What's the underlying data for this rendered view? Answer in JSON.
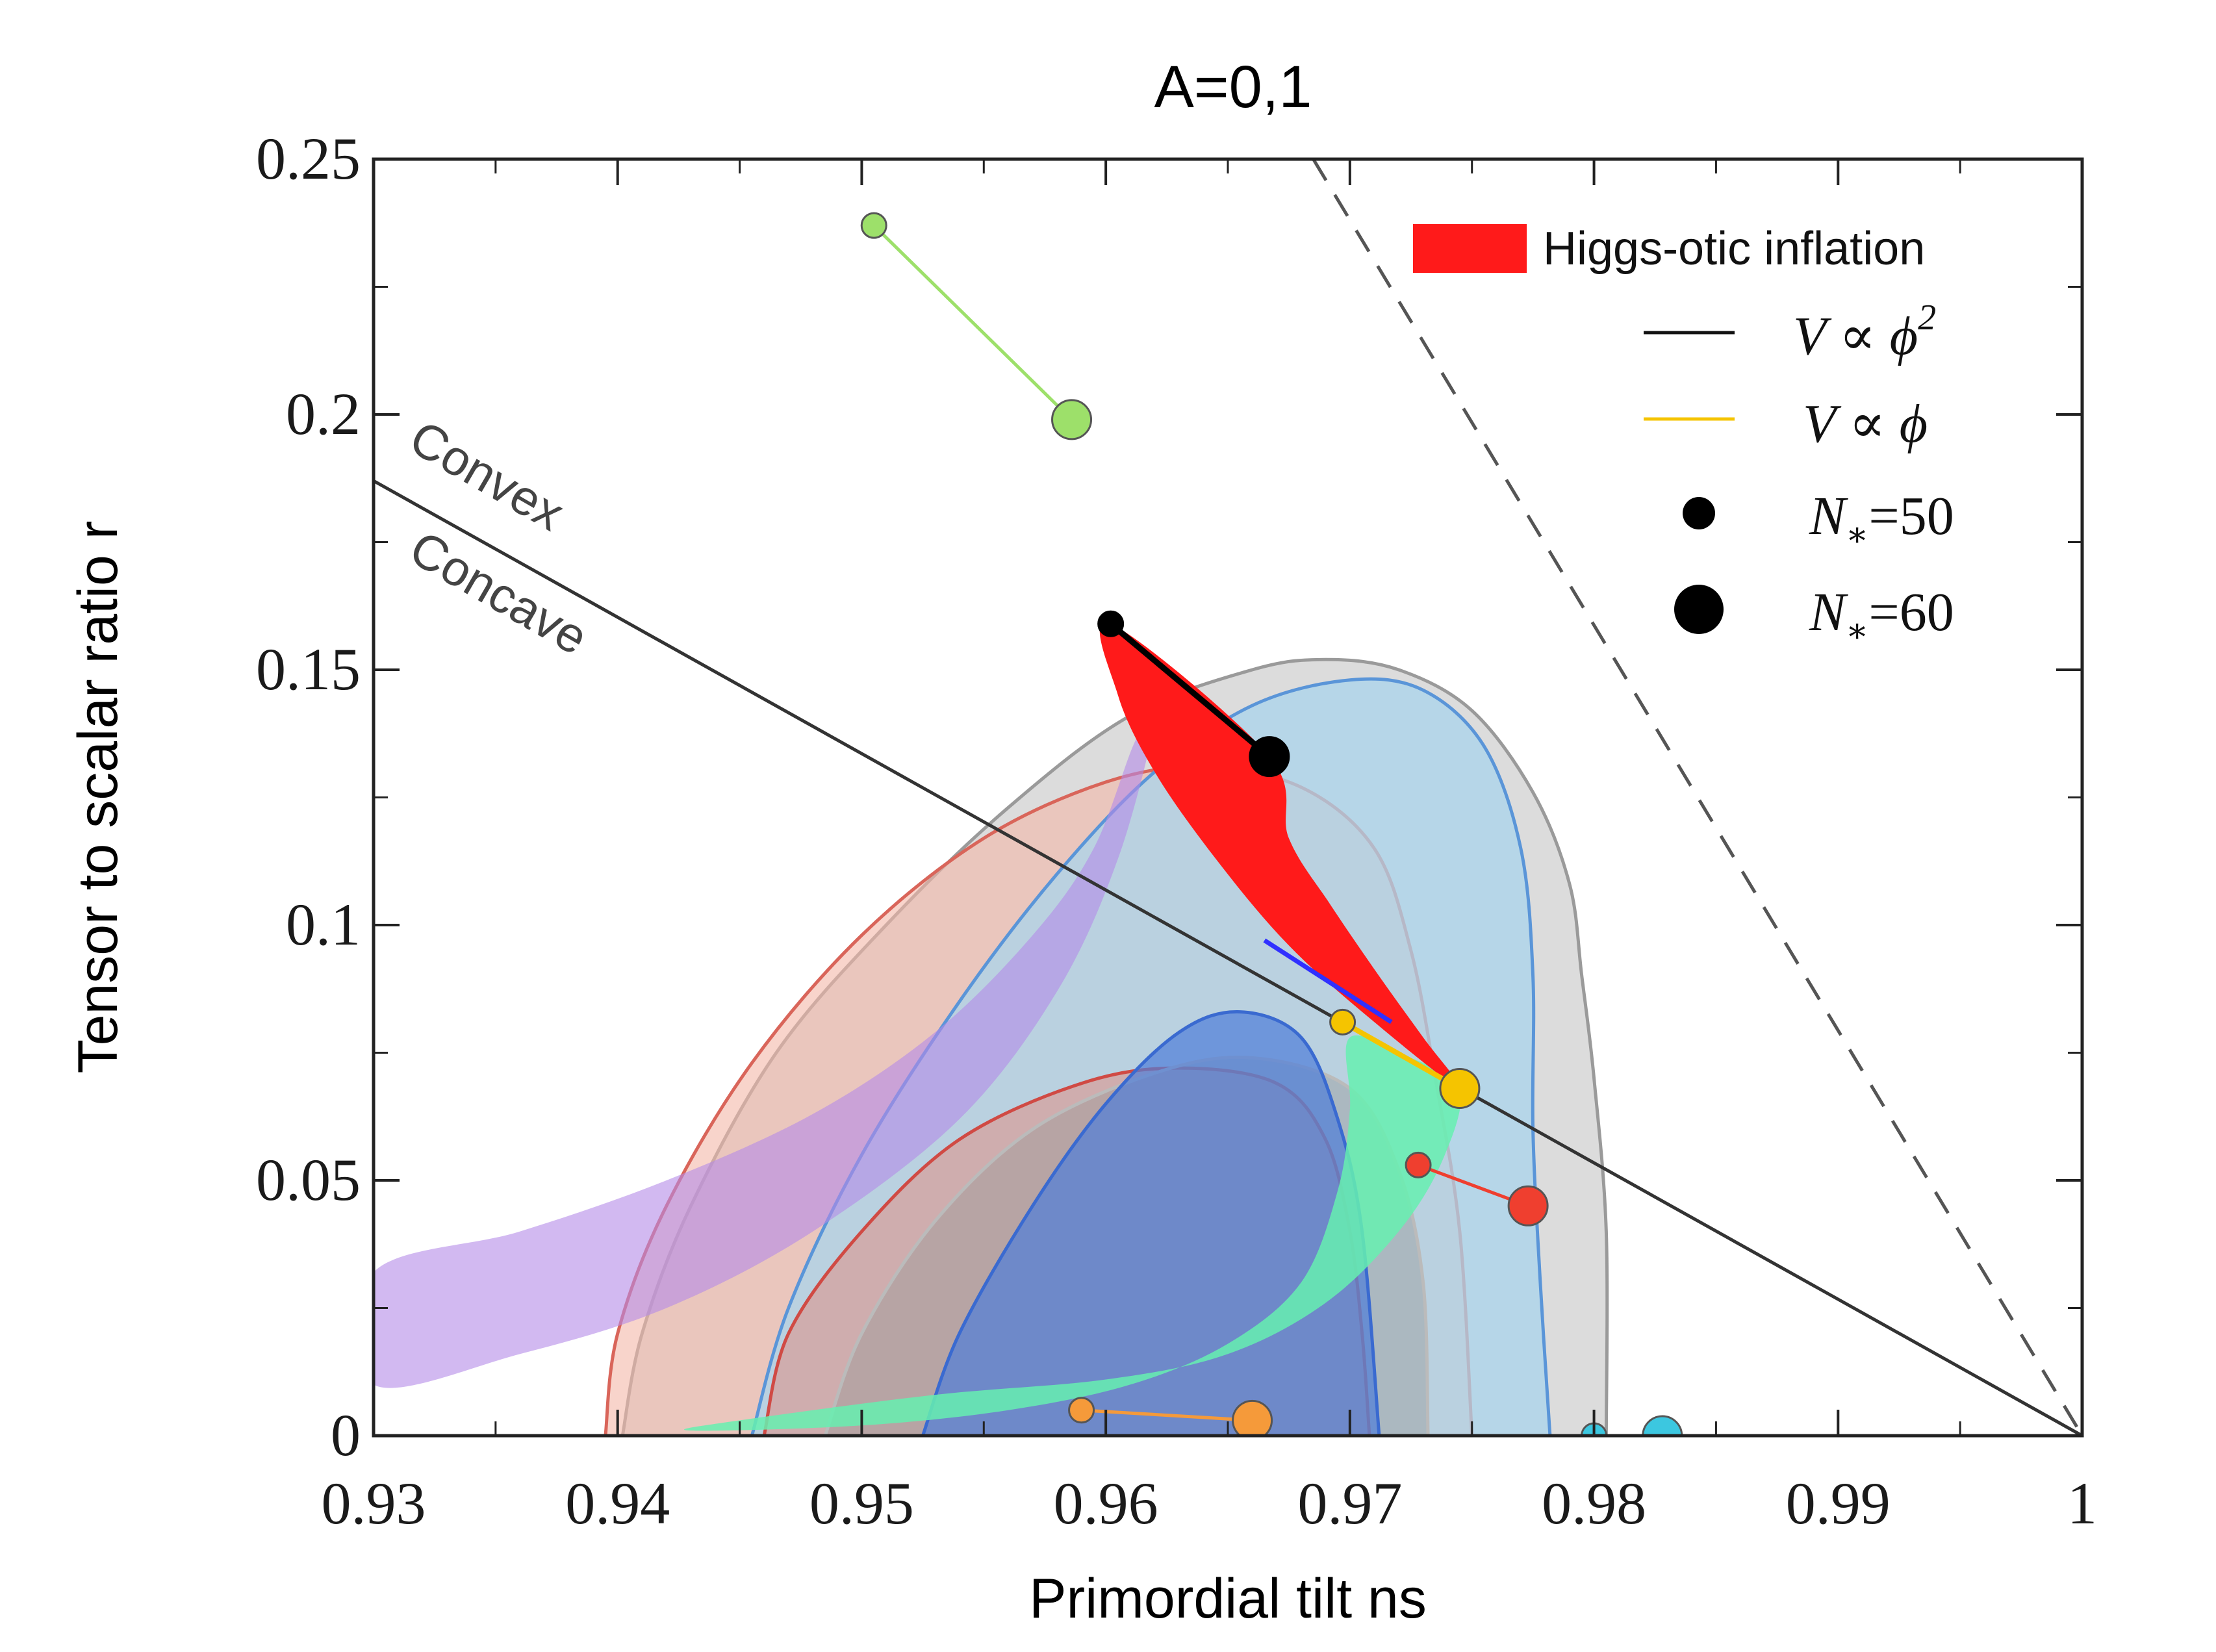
{
  "chart_data": {
    "type": "scatter",
    "title": "A=0,1",
    "xlabel": "Primordial tilt ns",
    "ylabel": "Tensor to scalar ratio r",
    "xlim": [
      0.93,
      1.0
    ],
    "ylim": [
      0,
      0.25
    ],
    "x_ticks": [
      0.93,
      0.94,
      0.95,
      0.96,
      0.97,
      0.98,
      0.99,
      1.0
    ],
    "x_tick_labels": [
      "0.93",
      "0.94",
      "0.95",
      "0.96",
      "0.97",
      "0.98",
      "0.99",
      "1"
    ],
    "y_ticks": [
      0,
      0.05,
      0.1,
      0.15,
      0.2,
      0.25
    ],
    "y_tick_labels": [
      "0",
      "0.05",
      "0.1",
      "0.15",
      "0.2",
      "0.25"
    ],
    "grid": false,
    "legend_position": "top-right",
    "legend": [
      {
        "label": "Higgs-otic inflation",
        "kind": "fill",
        "color": "#ff1a1a"
      },
      {
        "label_main": "V ∝ ϕ",
        "label_sup": "2",
        "kind": "line",
        "color": "#111111"
      },
      {
        "label_main": "V ∝ ϕ",
        "label_sup": "",
        "kind": "line",
        "color": "#f5c400"
      },
      {
        "label_main": "N",
        "label_sub": "∗",
        "label_rest": "=50",
        "kind": "small-dot",
        "color": "#000000"
      },
      {
        "label_main": "N",
        "label_sub": "∗",
        "label_rest": "=60",
        "kind": "big-dot",
        "color": "#000000"
      }
    ],
    "region_labels": [
      "Convex",
      "Concave"
    ],
    "reference_lines": [
      {
        "name": "convex-concave",
        "style": "solid",
        "color": "#333333",
        "points": [
          [
            0.93,
            0.187
          ],
          [
            1.0,
            0.0
          ]
        ]
      },
      {
        "name": "dashed-bound",
        "style": "dashed",
        "color": "#555555",
        "points": [
          [
            0.9685,
            0.25
          ],
          [
            1.0,
            0.0
          ]
        ]
      }
    ],
    "contours": [
      {
        "name": "grey-95",
        "fill": "#d6d6d6",
        "stroke": "#9a9a9a",
        "opacity": 0.85,
        "points": [
          [
            0.9402,
            0.0
          ],
          [
            0.941,
            0.02
          ],
          [
            0.943,
            0.045
          ],
          [
            0.9465,
            0.075
          ],
          [
            0.951,
            0.1
          ],
          [
            0.956,
            0.123
          ],
          [
            0.961,
            0.141
          ],
          [
            0.966,
            0.15
          ],
          [
            0.969,
            0.152
          ],
          [
            0.972,
            0.15
          ],
          [
            0.975,
            0.142
          ],
          [
            0.9775,
            0.126
          ],
          [
            0.979,
            0.108
          ],
          [
            0.9795,
            0.09
          ],
          [
            0.98,
            0.07
          ],
          [
            0.9805,
            0.04
          ],
          [
            0.9805,
            0.0
          ]
        ]
      },
      {
        "name": "red-95",
        "fill": "#f4b8a8",
        "stroke": "#d9655a",
        "opacity": 0.6,
        "points": [
          [
            0.9395,
            0.0
          ],
          [
            0.94,
            0.02
          ],
          [
            0.942,
            0.045
          ],
          [
            0.9455,
            0.073
          ],
          [
            0.95,
            0.098
          ],
          [
            0.955,
            0.117
          ],
          [
            0.96,
            0.128
          ],
          [
            0.964,
            0.131
          ],
          [
            0.968,
            0.127
          ],
          [
            0.971,
            0.115
          ],
          [
            0.9725,
            0.095
          ],
          [
            0.9735,
            0.07
          ],
          [
            0.9745,
            0.04
          ],
          [
            0.975,
            0.0
          ]
        ]
      },
      {
        "name": "blue-95",
        "fill": "#aad4ec",
        "stroke": "#5a95d8",
        "opacity": 0.75,
        "points": [
          [
            0.9455,
            0.0
          ],
          [
            0.947,
            0.025
          ],
          [
            0.95,
            0.055
          ],
          [
            0.954,
            0.085
          ],
          [
            0.958,
            0.11
          ],
          [
            0.962,
            0.13
          ],
          [
            0.966,
            0.143
          ],
          [
            0.97,
            0.148
          ],
          [
            0.973,
            0.146
          ],
          [
            0.9755,
            0.135
          ],
          [
            0.977,
            0.115
          ],
          [
            0.9775,
            0.09
          ],
          [
            0.9775,
            0.06
          ],
          [
            0.9778,
            0.03
          ],
          [
            0.9782,
            0.0
          ]
        ]
      },
      {
        "name": "red-68",
        "fill": "#e88070",
        "stroke": "#d04a44",
        "opacity": 0.45,
        "points": [
          [
            0.946,
            0.0
          ],
          [
            0.947,
            0.02
          ],
          [
            0.95,
            0.04
          ],
          [
            0.954,
            0.058
          ],
          [
            0.959,
            0.069
          ],
          [
            0.963,
            0.072
          ],
          [
            0.967,
            0.069
          ],
          [
            0.969,
            0.058
          ],
          [
            0.97,
            0.04
          ],
          [
            0.9705,
            0.02
          ],
          [
            0.9708,
            0.0
          ]
        ]
      },
      {
        "name": "grey-68",
        "fill": "#9a9a9a",
        "stroke": "#bbbbbb",
        "opacity": 0.45,
        "points": [
          [
            0.9485,
            0.0
          ],
          [
            0.95,
            0.02
          ],
          [
            0.953,
            0.042
          ],
          [
            0.957,
            0.06
          ],
          [
            0.962,
            0.071
          ],
          [
            0.966,
            0.074
          ],
          [
            0.97,
            0.068
          ],
          [
            0.972,
            0.052
          ],
          [
            0.973,
            0.03
          ],
          [
            0.9732,
            0.0
          ]
        ]
      },
      {
        "name": "blue-68",
        "fill": "#4f7ed8",
        "stroke": "#3a6ad0",
        "opacity": 0.7,
        "points": [
          [
            0.9525,
            0.0
          ],
          [
            0.954,
            0.02
          ],
          [
            0.957,
            0.045
          ],
          [
            0.96,
            0.065
          ],
          [
            0.963,
            0.079
          ],
          [
            0.9655,
            0.083
          ],
          [
            0.968,
            0.078
          ],
          [
            0.9695,
            0.062
          ],
          [
            0.9705,
            0.04
          ],
          [
            0.9712,
            0.0
          ]
        ]
      }
    ],
    "model_bands": [
      {
        "name": "purple-band",
        "fill": "#b48be8",
        "opacity": 0.6,
        "points": [
          [
            0.93,
            0.01
          ],
          [
            0.936,
            0.016
          ],
          [
            0.942,
            0.025
          ],
          [
            0.948,
            0.04
          ],
          [
            0.954,
            0.062
          ],
          [
            0.958,
            0.087
          ],
          [
            0.9605,
            0.113
          ],
          [
            0.962,
            0.14
          ],
          [
            0.9612,
            0.136
          ],
          [
            0.9595,
            0.115
          ],
          [
            0.957,
            0.098
          ],
          [
            0.953,
            0.079
          ],
          [
            0.948,
            0.063
          ],
          [
            0.942,
            0.05
          ],
          [
            0.936,
            0.04
          ],
          [
            0.93,
            0.032
          ]
        ]
      },
      {
        "name": "green-band",
        "fill": "#66f0b0",
        "opacity": 0.85,
        "points": [
          [
            0.943,
            0.001
          ],
          [
            0.95,
            0.002
          ],
          [
            0.956,
            0.005
          ],
          [
            0.961,
            0.01
          ],
          [
            0.965,
            0.018
          ],
          [
            0.968,
            0.03
          ],
          [
            0.9695,
            0.048
          ],
          [
            0.97,
            0.064
          ],
          [
            0.97,
            0.078
          ],
          [
            0.9725,
            0.074
          ],
          [
            0.9745,
            0.068
          ],
          [
            0.9738,
            0.054
          ],
          [
            0.972,
            0.04
          ],
          [
            0.969,
            0.026
          ],
          [
            0.965,
            0.016
          ],
          [
            0.96,
            0.011
          ],
          [
            0.953,
            0.008
          ],
          [
            0.945,
            0.003
          ]
        ]
      },
      {
        "name": "higgs-otic-band",
        "fill": "#ff1a1a",
        "opacity": 1.0,
        "points": [
          [
            0.9602,
            0.159
          ],
          [
            0.9605,
            0.145
          ],
          [
            0.962,
            0.13
          ],
          [
            0.9645,
            0.113
          ],
          [
            0.9675,
            0.096
          ],
          [
            0.971,
            0.081
          ],
          [
            0.9745,
            0.068
          ],
          [
            0.973,
            0.078
          ],
          [
            0.9712,
            0.09
          ],
          [
            0.9692,
            0.104
          ],
          [
            0.9675,
            0.117
          ],
          [
            0.9667,
            0.133
          ]
        ]
      }
    ],
    "series": [
      {
        "name": "",
        "color": "#9de06a",
        "points": [
          {
            "x": 0.9505,
            "y": 0.237,
            "size": "small"
          },
          {
            "x": 0.9586,
            "y": 0.199,
            "size": "large"
          }
        ]
      },
      {
        "name": "",
        "color": "#000000",
        "points": [
          {
            "x": 0.9602,
            "y": 0.159,
            "size": "small"
          },
          {
            "x": 0.9667,
            "y": 0.133,
            "size": "large"
          }
        ]
      },
      {
        "name": "",
        "color": "#f5c400",
        "points": [
          {
            "x": 0.9697,
            "y": 0.081,
            "size": "small"
          },
          {
            "x": 0.9745,
            "y": 0.068,
            "size": "large"
          }
        ]
      },
      {
        "name": "",
        "color": "#ef3f2f",
        "points": [
          {
            "x": 0.9728,
            "y": 0.053,
            "size": "small"
          },
          {
            "x": 0.9773,
            "y": 0.045,
            "size": "large"
          }
        ]
      },
      {
        "name": "",
        "color": "#f59a3a",
        "points": [
          {
            "x": 0.959,
            "y": 0.005,
            "size": "small"
          },
          {
            "x": 0.966,
            "y": 0.003,
            "size": "large"
          }
        ]
      },
      {
        "name": "",
        "color": "#3cc7e0",
        "points": [
          {
            "x": 0.98,
            "y": 0.0,
            "size": "small"
          },
          {
            "x": 0.9828,
            "y": 0.0,
            "size": "large"
          }
        ]
      }
    ],
    "blue_segment": {
      "color": "#3030ff",
      "points": [
        [
          0.9665,
          0.097
        ],
        [
          0.9717,
          0.081
        ]
      ]
    }
  }
}
